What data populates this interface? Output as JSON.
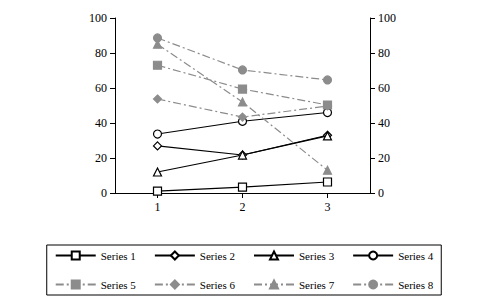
{
  "chart_data": {
    "type": "line",
    "categories": [
      "1",
      "2",
      "3"
    ],
    "series": [
      {
        "name": "Series 1",
        "color": "#000000",
        "marker": "square",
        "line_style": "solid",
        "values": [
          1.1,
          3.4,
          6.3
        ]
      },
      {
        "name": "Series 2",
        "color": "#000000",
        "marker": "diamond",
        "line_style": "solid",
        "values": [
          26.9,
          21.7,
          33.0
        ]
      },
      {
        "name": "Series 3",
        "color": "#000000",
        "marker": "triangle",
        "line_style": "solid",
        "values": [
          12.0,
          21.7,
          32.6
        ]
      },
      {
        "name": "Series 4",
        "color": "#000000",
        "marker": "circle",
        "line_style": "solid",
        "values": [
          33.7,
          41.0,
          46.0
        ]
      },
      {
        "name": "Series 5",
        "color": "#8c8c8c",
        "marker": "square",
        "line_style": "dashed",
        "axis": "y2",
        "values": [
          73.0,
          59.4,
          50.3
        ]
      },
      {
        "name": "Series 6",
        "color": "#8c8c8c",
        "marker": "diamond",
        "line_style": "dashed",
        "axis": "y2",
        "values": [
          53.7,
          43.4,
          49.7
        ]
      },
      {
        "name": "Series 7",
        "color": "#8c8c8c",
        "marker": "triangle",
        "line_style": "dashed",
        "axis": "y2",
        "values": [
          85.0,
          52.0,
          13.0
        ]
      },
      {
        "name": "Series 8",
        "color": "#8c8c8c",
        "marker": "circle",
        "line_style": "dashed",
        "axis": "y2",
        "values": [
          88.6,
          70.3,
          64.6
        ]
      }
    ],
    "ylim": [
      0,
      100
    ],
    "yticks": [
      0,
      20,
      40,
      60,
      80,
      100
    ],
    "y2lim": [
      0,
      100
    ],
    "y2ticks": [
      0,
      20,
      40,
      60,
      80,
      100
    ],
    "grid": false,
    "legend": "bottom"
  }
}
